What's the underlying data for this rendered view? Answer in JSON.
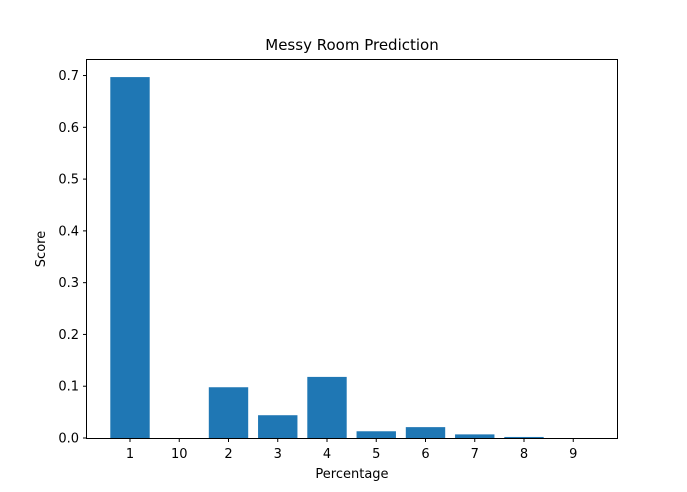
{
  "chart_data": {
    "type": "bar",
    "title": "Messy Room Prediction",
    "xlabel": "Percentage",
    "ylabel": "Score",
    "categories": [
      "1",
      "10",
      "2",
      "3",
      "4",
      "5",
      "6",
      "7",
      "8",
      "9"
    ],
    "values": [
      0.697,
      0.0,
      0.098,
      0.044,
      0.118,
      0.013,
      0.021,
      0.007,
      0.002,
      0.0
    ],
    "ylim": [
      0,
      0.73
    ],
    "yticks": [
      "0.0",
      "0.1",
      "0.2",
      "0.3",
      "0.4",
      "0.5",
      "0.6",
      "0.7"
    ],
    "bar_color": "#1f77b4",
    "grid": false
  }
}
